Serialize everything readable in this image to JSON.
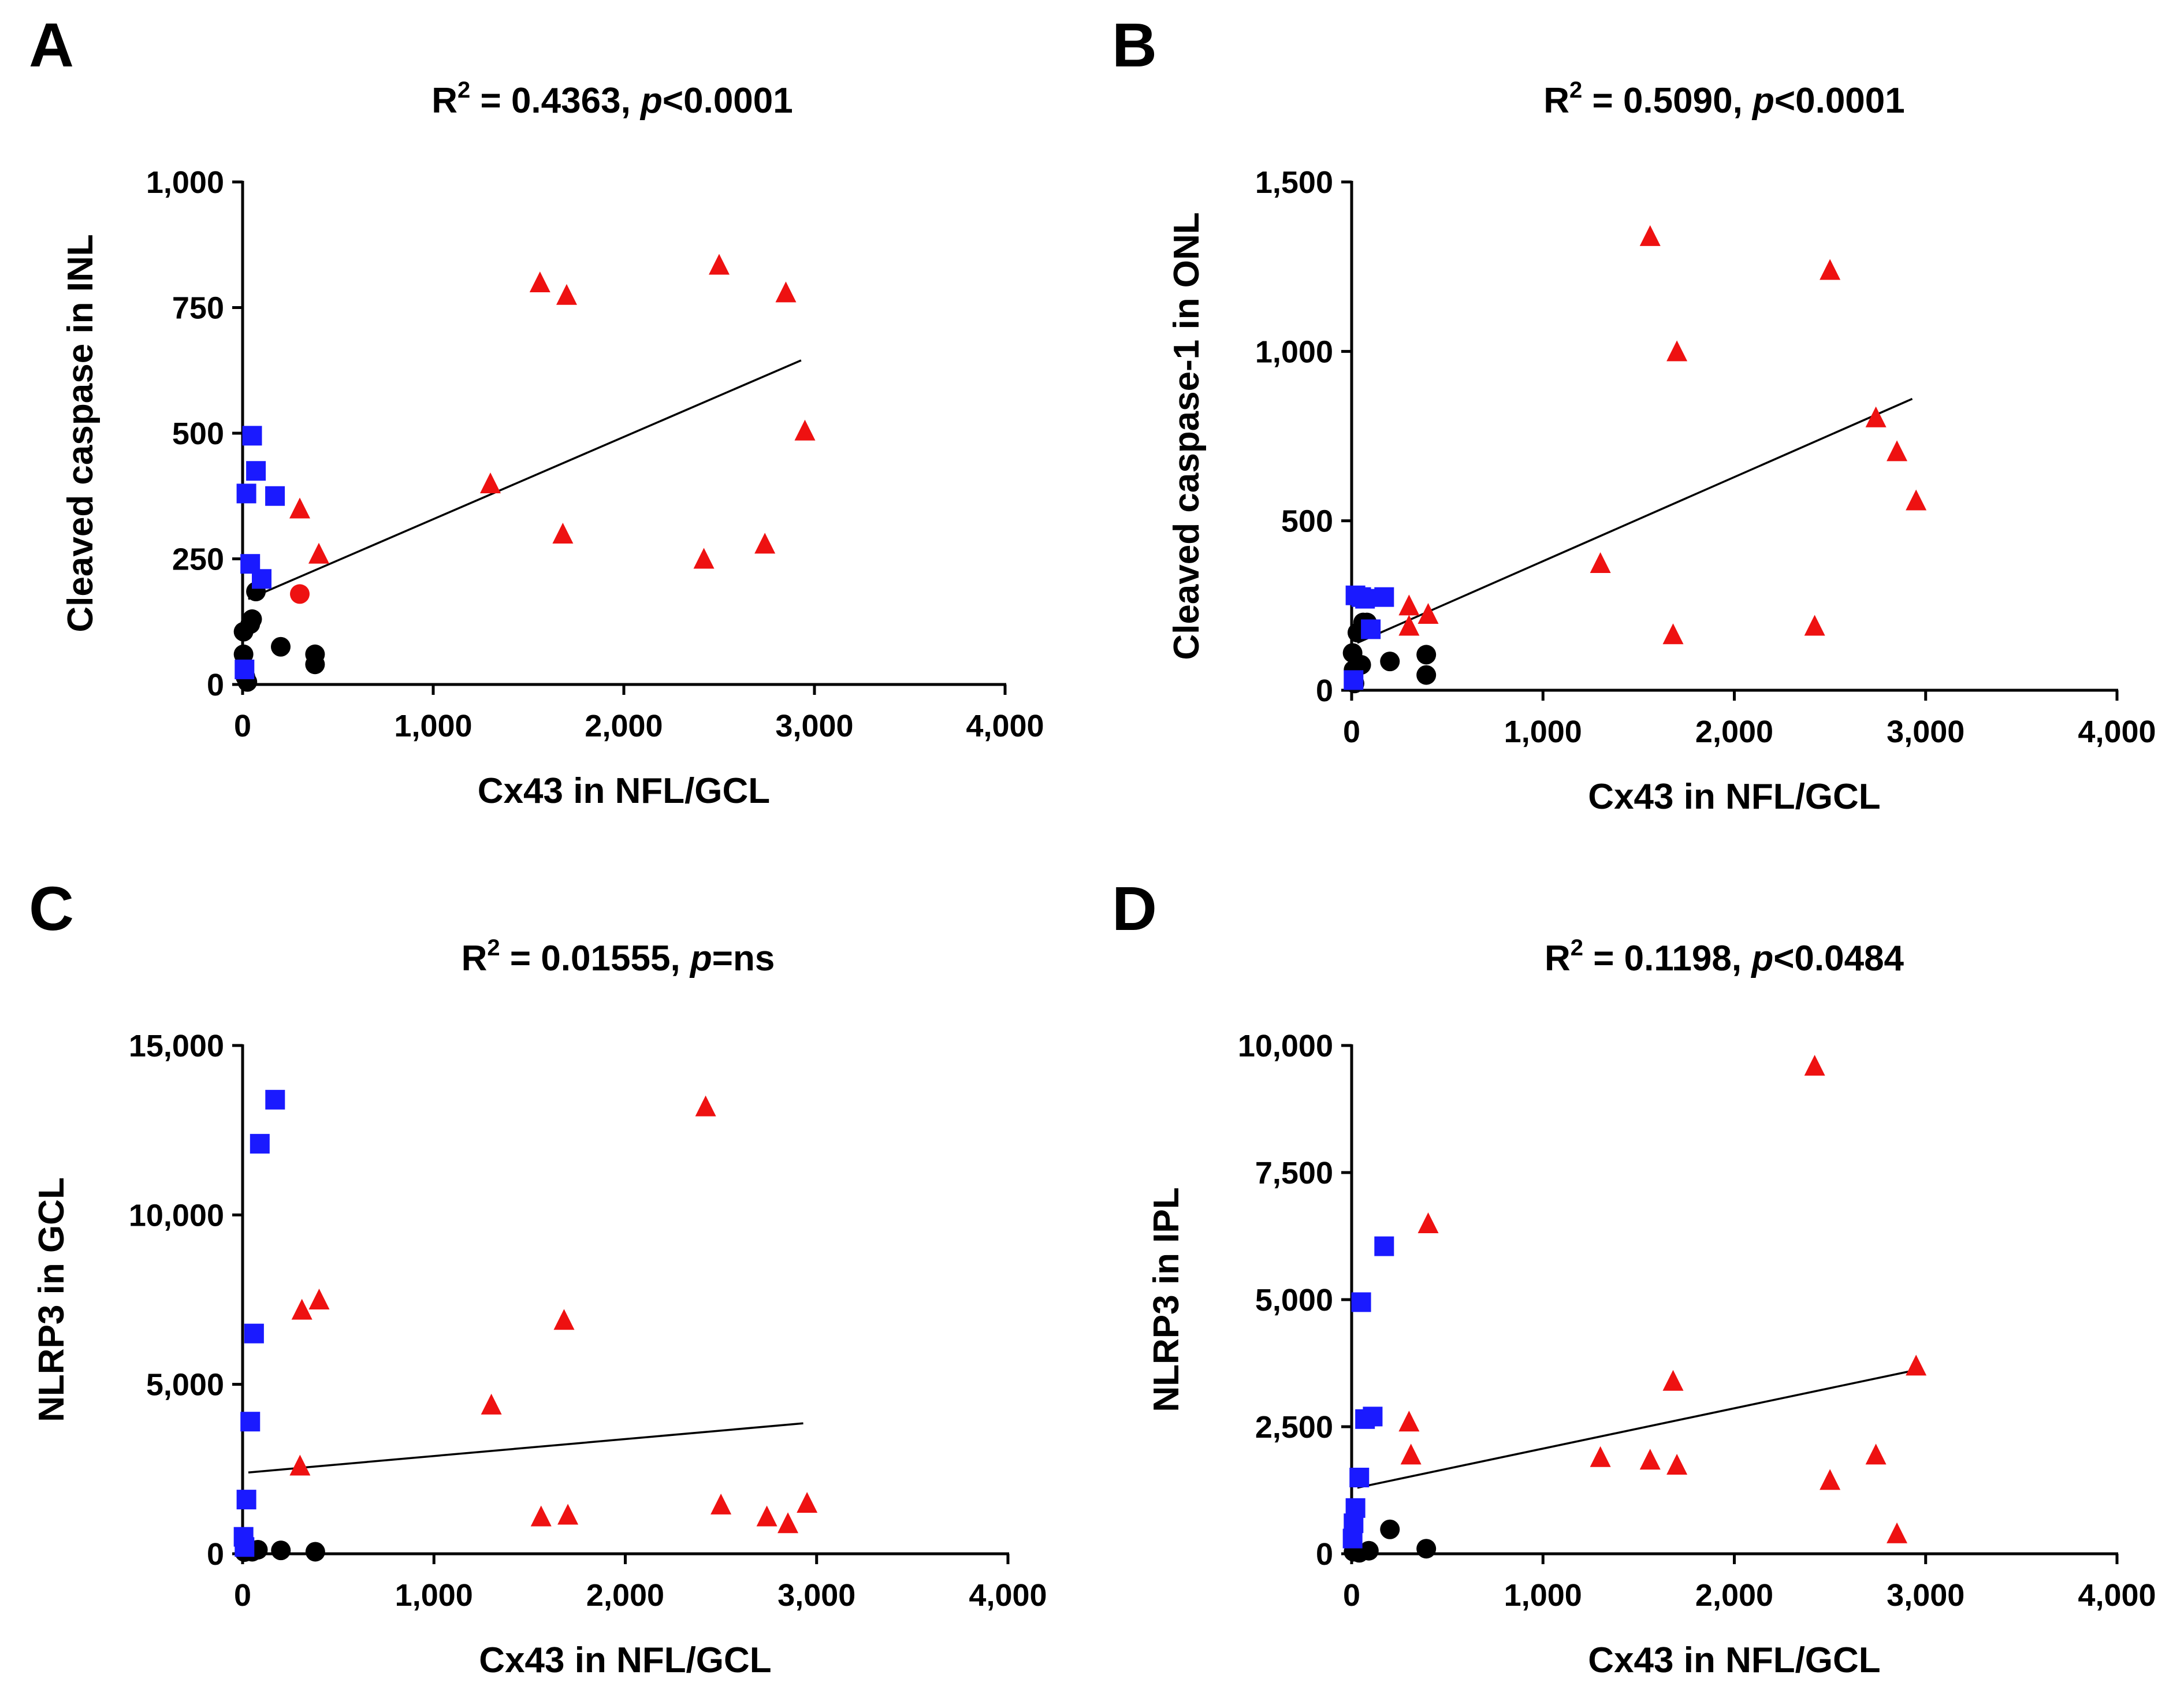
{
  "colors": {
    "wt": "#000000",
    "blue_group": "#1a1aff",
    "red_group": "#ee1111"
  },
  "chart_data": [
    {
      "type": "scatter",
      "panel": "A",
      "title_prefix": "R",
      "title_sup": "2",
      "title_value": " = 0.4363, ",
      "title_p": "p",
      "title_p_value": "<0.0001",
      "xlabel": "Cx43 in NFL/GCL",
      "ylabel": "Cleaved caspase in INL",
      "xlim": [
        0,
        4000
      ],
      "ylim": [
        0,
        1000
      ],
      "xticks": [
        0,
        1000,
        2000,
        3000,
        4000
      ],
      "xtick_labels": [
        "0",
        "1,000",
        "2,000",
        "3,000",
        "4,000"
      ],
      "yticks": [
        0,
        250,
        500,
        750,
        1000
      ],
      "ytick_labels": [
        "0",
        "250",
        "500",
        "750",
        "1,000"
      ],
      "regression": {
        "x": [
          30,
          2930
        ],
        "y": [
          170,
          645
        ]
      },
      "series": [
        {
          "name": "circles-black",
          "marker": "circle",
          "color": "#000000",
          "points": [
            [
              5,
              105
            ],
            [
              5,
              60
            ],
            [
              15,
              15
            ],
            [
              25,
              5
            ],
            [
              40,
              120
            ],
            [
              50,
              130
            ],
            [
              70,
              185
            ],
            [
              200,
              75
            ],
            [
              380,
              60
            ],
            [
              380,
              40
            ]
          ]
        },
        {
          "name": "circles-red",
          "marker": "circle",
          "color": "#ee1111",
          "points": [
            [
              300,
              180
            ]
          ]
        },
        {
          "name": "squares-blue",
          "marker": "square",
          "color": "#1a1aff",
          "points": [
            [
              10,
              30
            ],
            [
              20,
              380
            ],
            [
              40,
              240
            ],
            [
              50,
              495
            ],
            [
              70,
              425
            ],
            [
              100,
              210
            ],
            [
              170,
              375
            ]
          ]
        },
        {
          "name": "triangles-red",
          "marker": "triangle",
          "color": "#ee1111",
          "points": [
            [
              300,
              350
            ],
            [
              400,
              260
            ],
            [
              1300,
              400
            ],
            [
              1560,
              800
            ],
            [
              1680,
              300
            ],
            [
              1700,
              775
            ],
            [
              2420,
              250
            ],
            [
              2500,
              835
            ],
            [
              2740,
              280
            ],
            [
              2850,
              780
            ],
            [
              2950,
              505
            ]
          ]
        }
      ]
    },
    {
      "type": "scatter",
      "panel": "B",
      "title_prefix": "R",
      "title_sup": "2",
      "title_value": " = 0.5090, ",
      "title_p": "p",
      "title_p_value": "<0.0001",
      "xlabel": "Cx43 in NFL/GCL",
      "ylabel": "Cleaved caspase-1 in ONL",
      "xlim": [
        0,
        4000
      ],
      "ylim": [
        0,
        1500
      ],
      "xticks": [
        0,
        1000,
        2000,
        3000,
        4000
      ],
      "xtick_labels": [
        "0",
        "1,000",
        "2,000",
        "3,000",
        "4,000"
      ],
      "yticks": [
        0,
        500,
        1000,
        1500
      ],
      "ytick_labels": [
        "0",
        "500",
        "1,000",
        "1,500"
      ],
      "regression": {
        "x": [
          30,
          2930
        ],
        "y": [
          140,
          860
        ]
      },
      "series": [
        {
          "name": "circles-black",
          "marker": "circle",
          "color": "#000000",
          "points": [
            [
              5,
              110
            ],
            [
              10,
              60
            ],
            [
              15,
              20
            ],
            [
              30,
              170
            ],
            [
              50,
              75
            ],
            [
              60,
              200
            ],
            [
              80,
              200
            ],
            [
              200,
              85
            ],
            [
              390,
              105
            ],
            [
              390,
              45
            ]
          ]
        },
        {
          "name": "squares-blue",
          "marker": "square",
          "color": "#1a1aff",
          "points": [
            [
              10,
              30
            ],
            [
              20,
              280
            ],
            [
              50,
              275
            ],
            [
              70,
              270
            ],
            [
              100,
              180
            ],
            [
              170,
              275
            ]
          ]
        },
        {
          "name": "triangles-red",
          "marker": "triangle",
          "color": "#ee1111",
          "points": [
            [
              300,
              250
            ],
            [
              300,
              190
            ],
            [
              400,
              225
            ],
            [
              1300,
              375
            ],
            [
              1560,
              1340
            ],
            [
              1680,
              165
            ],
            [
              1700,
              1000
            ],
            [
              2420,
              190
            ],
            [
              2500,
              1240
            ],
            [
              2740,
              805
            ],
            [
              2850,
              705
            ],
            [
              2950,
              560
            ]
          ]
        }
      ]
    },
    {
      "type": "scatter",
      "panel": "C",
      "title_prefix": "R",
      "title_sup": "2",
      "title_value": " = 0.01555, ",
      "title_p": "p",
      "title_p_value": "=ns",
      "xlabel": "Cx43 in NFL/GCL",
      "ylabel": "NLRP3 in GCL",
      "xlim": [
        0,
        4000
      ],
      "ylim": [
        0,
        15000
      ],
      "xticks": [
        0,
        1000,
        2000,
        3000,
        4000
      ],
      "xtick_labels": [
        "0",
        "1,000",
        "2,000",
        "3,000",
        "4,000"
      ],
      "yticks": [
        0,
        5000,
        10000,
        15000
      ],
      "ytick_labels": [
        "0",
        "5,000",
        "10,000",
        "15,000"
      ],
      "regression": {
        "x": [
          30,
          2930
        ],
        "y": [
          2400,
          3850
        ]
      },
      "series": [
        {
          "name": "circles-black",
          "marker": "circle",
          "color": "#000000",
          "points": [
            [
              10,
              50
            ],
            [
              30,
              80
            ],
            [
              50,
              60
            ],
            [
              80,
              120
            ],
            [
              200,
              100
            ],
            [
              380,
              60
            ]
          ]
        },
        {
          "name": "squares-blue",
          "marker": "square",
          "color": "#1a1aff",
          "points": [
            [
              5,
              500
            ],
            [
              10,
              200
            ],
            [
              20,
              1600
            ],
            [
              40,
              3900
            ],
            [
              60,
              6500
            ],
            [
              90,
              12100
            ],
            [
              170,
              13400
            ]
          ]
        },
        {
          "name": "triangles-red",
          "marker": "triangle",
          "color": "#ee1111",
          "points": [
            [
              300,
              2600
            ],
            [
              310,
              7200
            ],
            [
              400,
              7500
            ],
            [
              1300,
              4400
            ],
            [
              1560,
              1100
            ],
            [
              1680,
              6900
            ],
            [
              1700,
              1150
            ],
            [
              2420,
              13200
            ],
            [
              2500,
              1450
            ],
            [
              2740,
              1100
            ],
            [
              2850,
              900
            ],
            [
              2950,
              1500
            ]
          ]
        }
      ]
    },
    {
      "type": "scatter",
      "panel": "D",
      "title_prefix": "R",
      "title_sup": "2",
      "title_value": " = 0.1198, ",
      "title_p": "p",
      "title_p_value": "<0.0484",
      "xlabel": "Cx43 in NFL/GCL",
      "ylabel": "NLRP3 in IPL",
      "xlim": [
        0,
        4000
      ],
      "ylim": [
        0,
        10000
      ],
      "xticks": [
        0,
        1000,
        2000,
        3000,
        4000
      ],
      "xtick_labels": [
        "0",
        "1,000",
        "2,000",
        "3,000",
        "4,000"
      ],
      "yticks": [
        0,
        2500,
        5000,
        7500,
        10000
      ],
      "ytick_labels": [
        "0",
        "2,500",
        "5,000",
        "7,500",
        "10,000"
      ],
      "regression": {
        "x": [
          30,
          2930
        ],
        "y": [
          1300,
          3600
        ]
      },
      "series": [
        {
          "name": "circles-black",
          "marker": "circle",
          "color": "#000000",
          "points": [
            [
              10,
              40
            ],
            [
              40,
              20
            ],
            [
              90,
              60
            ],
            [
              200,
              480
            ],
            [
              390,
              100
            ]
          ]
        },
        {
          "name": "squares-blue",
          "marker": "square",
          "color": "#1a1aff",
          "points": [
            [
              5,
              300
            ],
            [
              10,
              600
            ],
            [
              20,
              900
            ],
            [
              40,
              1500
            ],
            [
              50,
              4950
            ],
            [
              70,
              2650
            ],
            [
              110,
              2700
            ],
            [
              170,
              6050
            ]
          ]
        },
        {
          "name": "triangles-red",
          "marker": "triangle",
          "color": "#ee1111",
          "points": [
            [
              300,
              2600
            ],
            [
              310,
              1950
            ],
            [
              400,
              6500
            ],
            [
              1300,
              1900
            ],
            [
              1560,
              1850
            ],
            [
              1680,
              3400
            ],
            [
              1700,
              1750
            ],
            [
              2420,
              9600
            ],
            [
              2500,
              1450
            ],
            [
              2740,
              1950
            ],
            [
              2850,
              400
            ],
            [
              2950,
              3700
            ]
          ]
        }
      ]
    }
  ]
}
